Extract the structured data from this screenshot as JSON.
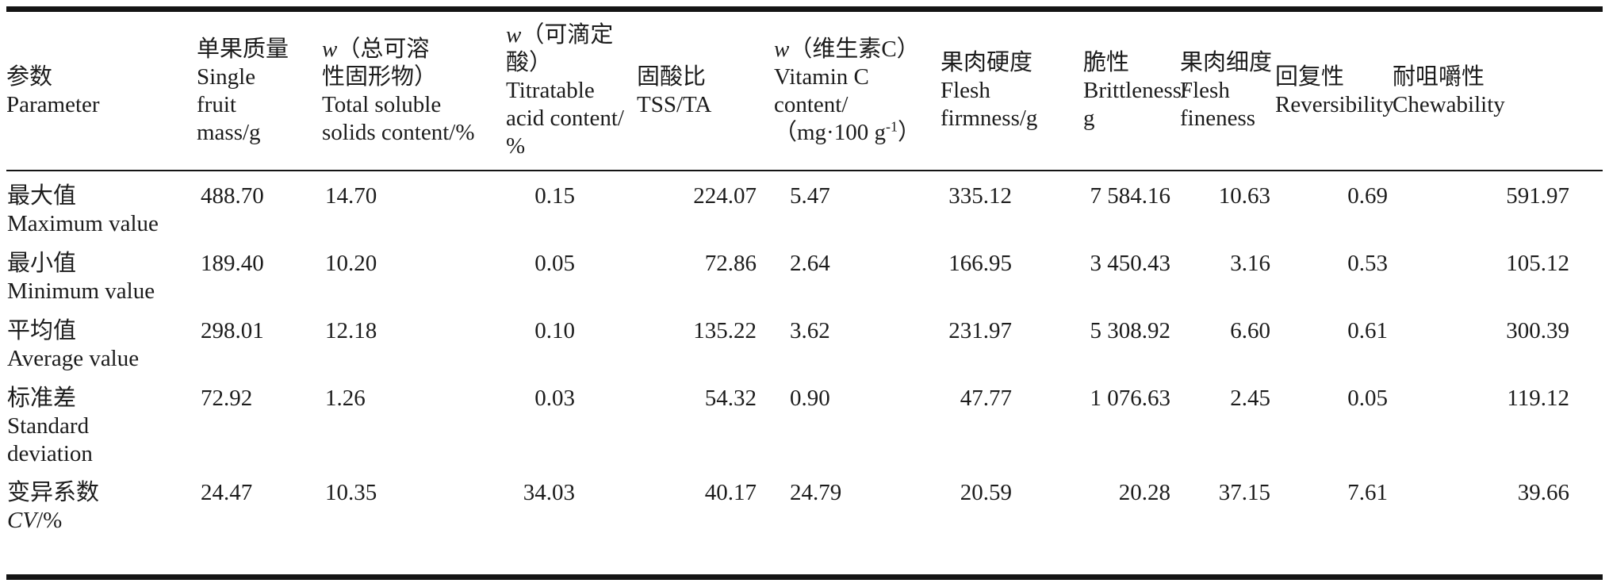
{
  "table": {
    "header": {
      "c1": {
        "zh": "参数",
        "en": "Parameter"
      },
      "c2": {
        "zh": "单果质量",
        "en1": "Single",
        "en2": "fruit",
        "en3": "mass/g"
      },
      "c3": {
        "sym": "w",
        "zh1": "（总可溶",
        "zh2": "性固形物）",
        "en1": "Total soluble",
        "en2": "solids content/%"
      },
      "c4": {
        "sym": "w",
        "zh": "（可滴定酸）",
        "en1": "Titratable",
        "en2": "acid content/",
        "en3": "%"
      },
      "c5": {
        "zh": "固酸比",
        "en": "TSS/TA"
      },
      "c6": {
        "sym": "w",
        "zh": "（维生素C）",
        "en1": "Vitamin C",
        "en2": "content/",
        "unit_pre": "（mg·100 g",
        "unit_sup": "-1",
        "unit_post": "）"
      },
      "c7": {
        "zh": "果肉硬度",
        "en1": "Flesh",
        "en2": "firmness/g"
      },
      "c8": {
        "zh": "脆性",
        "en1": "Brittleness/",
        "en2": "g"
      },
      "c9": {
        "zh": "果肉细度",
        "en1": "Flesh",
        "en2": "fineness"
      },
      "c10": {
        "zh": "回复性",
        "en": "Reversibility"
      },
      "c11": {
        "zh": "耐咀嚼性",
        "en": "Chewability"
      }
    },
    "rows": [
      {
        "zh": "最大值",
        "en": "Maximum value",
        "v": [
          "488.70",
          "14.70",
          "0.15",
          "224.07",
          "5.47",
          "335.12",
          "7 584.16",
          "10.63",
          "0.69",
          "591.97"
        ]
      },
      {
        "zh": "最小值",
        "en": "Minimum value",
        "v": [
          "189.40",
          "10.20",
          "0.05",
          "72.86",
          "2.64",
          "166.95",
          "3 450.43",
          "3.16",
          "0.53",
          "105.12"
        ]
      },
      {
        "zh": "平均值",
        "en": "Average value",
        "v": [
          "298.01",
          "12.18",
          "0.10",
          "135.22",
          "3.62",
          "231.97",
          "5 308.92",
          "6.60",
          "0.61",
          "300.39"
        ]
      },
      {
        "zh": "标准差",
        "en": "Standard\ndeviation",
        "v": [
          "72.92",
          "1.26",
          "0.03",
          "54.32",
          "0.90",
          "47.77",
          "1 076.63",
          "2.45",
          "0.05",
          "119.12"
        ]
      },
      {
        "zh": "变异系数",
        "en_italic": "CV",
        "en_rest": "/%",
        "v": [
          "24.47",
          "10.35",
          "34.03",
          "40.17",
          "24.79",
          "20.59",
          "20.28",
          "37.15",
          "7.61",
          "39.66"
        ]
      }
    ]
  }
}
